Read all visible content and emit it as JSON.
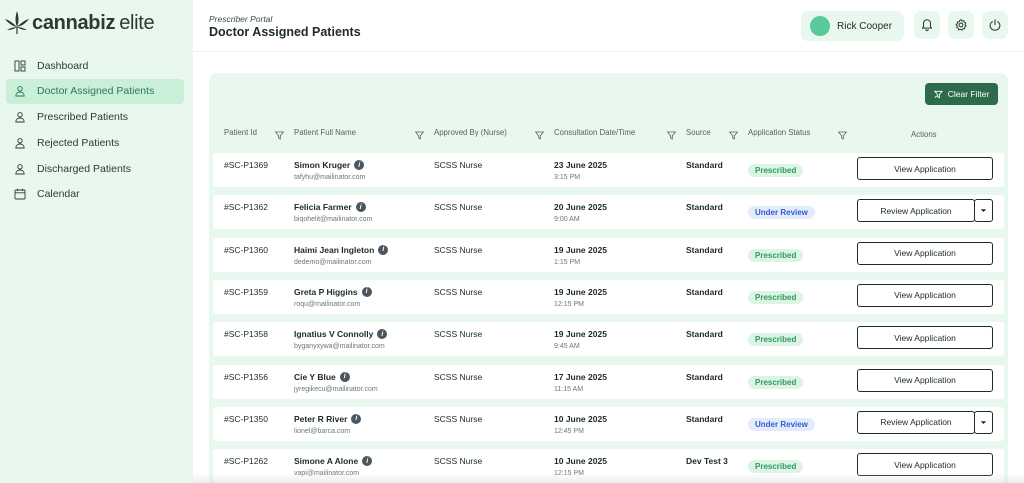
{
  "brand": {
    "name_bold": "cannabiz",
    "name_light": "elite"
  },
  "sidebar": {
    "items": [
      {
        "label": "Dashboard",
        "icon": "grid-icon",
        "active": false
      },
      {
        "label": "Doctor Assigned Patients",
        "icon": "user-icon",
        "active": true
      },
      {
        "label": "Prescribed Patients",
        "icon": "user-icon",
        "active": false
      },
      {
        "label": "Rejected Patients",
        "icon": "user-icon",
        "active": false
      },
      {
        "label": "Discharged Patients",
        "icon": "user-icon",
        "active": false
      },
      {
        "label": "Calendar",
        "icon": "calendar-icon",
        "active": false
      }
    ]
  },
  "header": {
    "portal": "Prescriber Portal",
    "title": "Doctor Assigned Patients",
    "user_name": "Rick Cooper"
  },
  "toolbar": {
    "clear_filter": "Clear Filter"
  },
  "table": {
    "columns": [
      "Patient Id",
      "Patient Full Name",
      "Approved By (Nurse)",
      "Consultation Date/Time",
      "Source",
      "Application Status",
      "Actions"
    ],
    "rows": [
      {
        "id": "#SC-P1369",
        "name": "Simon Kruger",
        "email": "tafyhu@mailinator.com",
        "approved_by": "SCSS Nurse",
        "date": "23 June 2025",
        "time": "3:15 PM",
        "source": "Standard",
        "status": "Prescribed",
        "action": "View Application"
      },
      {
        "id": "#SC-P1362",
        "name": "Felicia Farmer",
        "email": "biqohelit@mailinator.com",
        "approved_by": "SCSS Nurse",
        "date": "20 June 2025",
        "time": "9:00 AM",
        "source": "Standard",
        "status": "Under Review",
        "action": "Review Application"
      },
      {
        "id": "#SC-P1360",
        "name": "Haimi Jean Ingleton",
        "email": "dedemo@mailinator.com",
        "approved_by": "SCSS Nurse",
        "date": "19 June 2025",
        "time": "1:15 PM",
        "source": "Standard",
        "status": "Prescribed",
        "action": "View Application"
      },
      {
        "id": "#SC-P1359",
        "name": "Greta P Higgins",
        "email": "roqu@mailinator.com",
        "approved_by": "SCSS Nurse",
        "date": "19 June 2025",
        "time": "12:15 PM",
        "source": "Standard",
        "status": "Prescribed",
        "action": "View Application"
      },
      {
        "id": "#SC-P1358",
        "name": "Ignatius V Connolly",
        "email": "byganyxywa@mailinator.com",
        "approved_by": "SCSS Nurse",
        "date": "19 June 2025",
        "time": "9:45 AM",
        "source": "Standard",
        "status": "Prescribed",
        "action": "View Application"
      },
      {
        "id": "#SC-P1356",
        "name": "Cie Y Blue",
        "email": "jyregikecu@mailinator.com",
        "approved_by": "SCSS Nurse",
        "date": "17 June 2025",
        "time": "11:15 AM",
        "source": "Standard",
        "status": "Prescribed",
        "action": "View Application"
      },
      {
        "id": "#SC-P1350",
        "name": "Peter R River",
        "email": "lionel@barca.com",
        "approved_by": "SCSS Nurse",
        "date": "10 June 2025",
        "time": "12:45 PM",
        "source": "Standard",
        "status": "Under Review",
        "action": "Review Application"
      },
      {
        "id": "#SC-P1262",
        "name": "Simone A Alone",
        "email": "vapi@mailinator.com",
        "approved_by": "SCSS Nurse",
        "date": "10 June 2025",
        "time": "12:15 PM",
        "source": "Dev Test 3",
        "status": "Prescribed",
        "action": "View Application"
      }
    ]
  },
  "colors": {
    "accent": "#2d6b4c",
    "sidebar_bg": "#e9f8ef",
    "prescribed": "#2f9a63",
    "review": "#2f5bd6"
  }
}
